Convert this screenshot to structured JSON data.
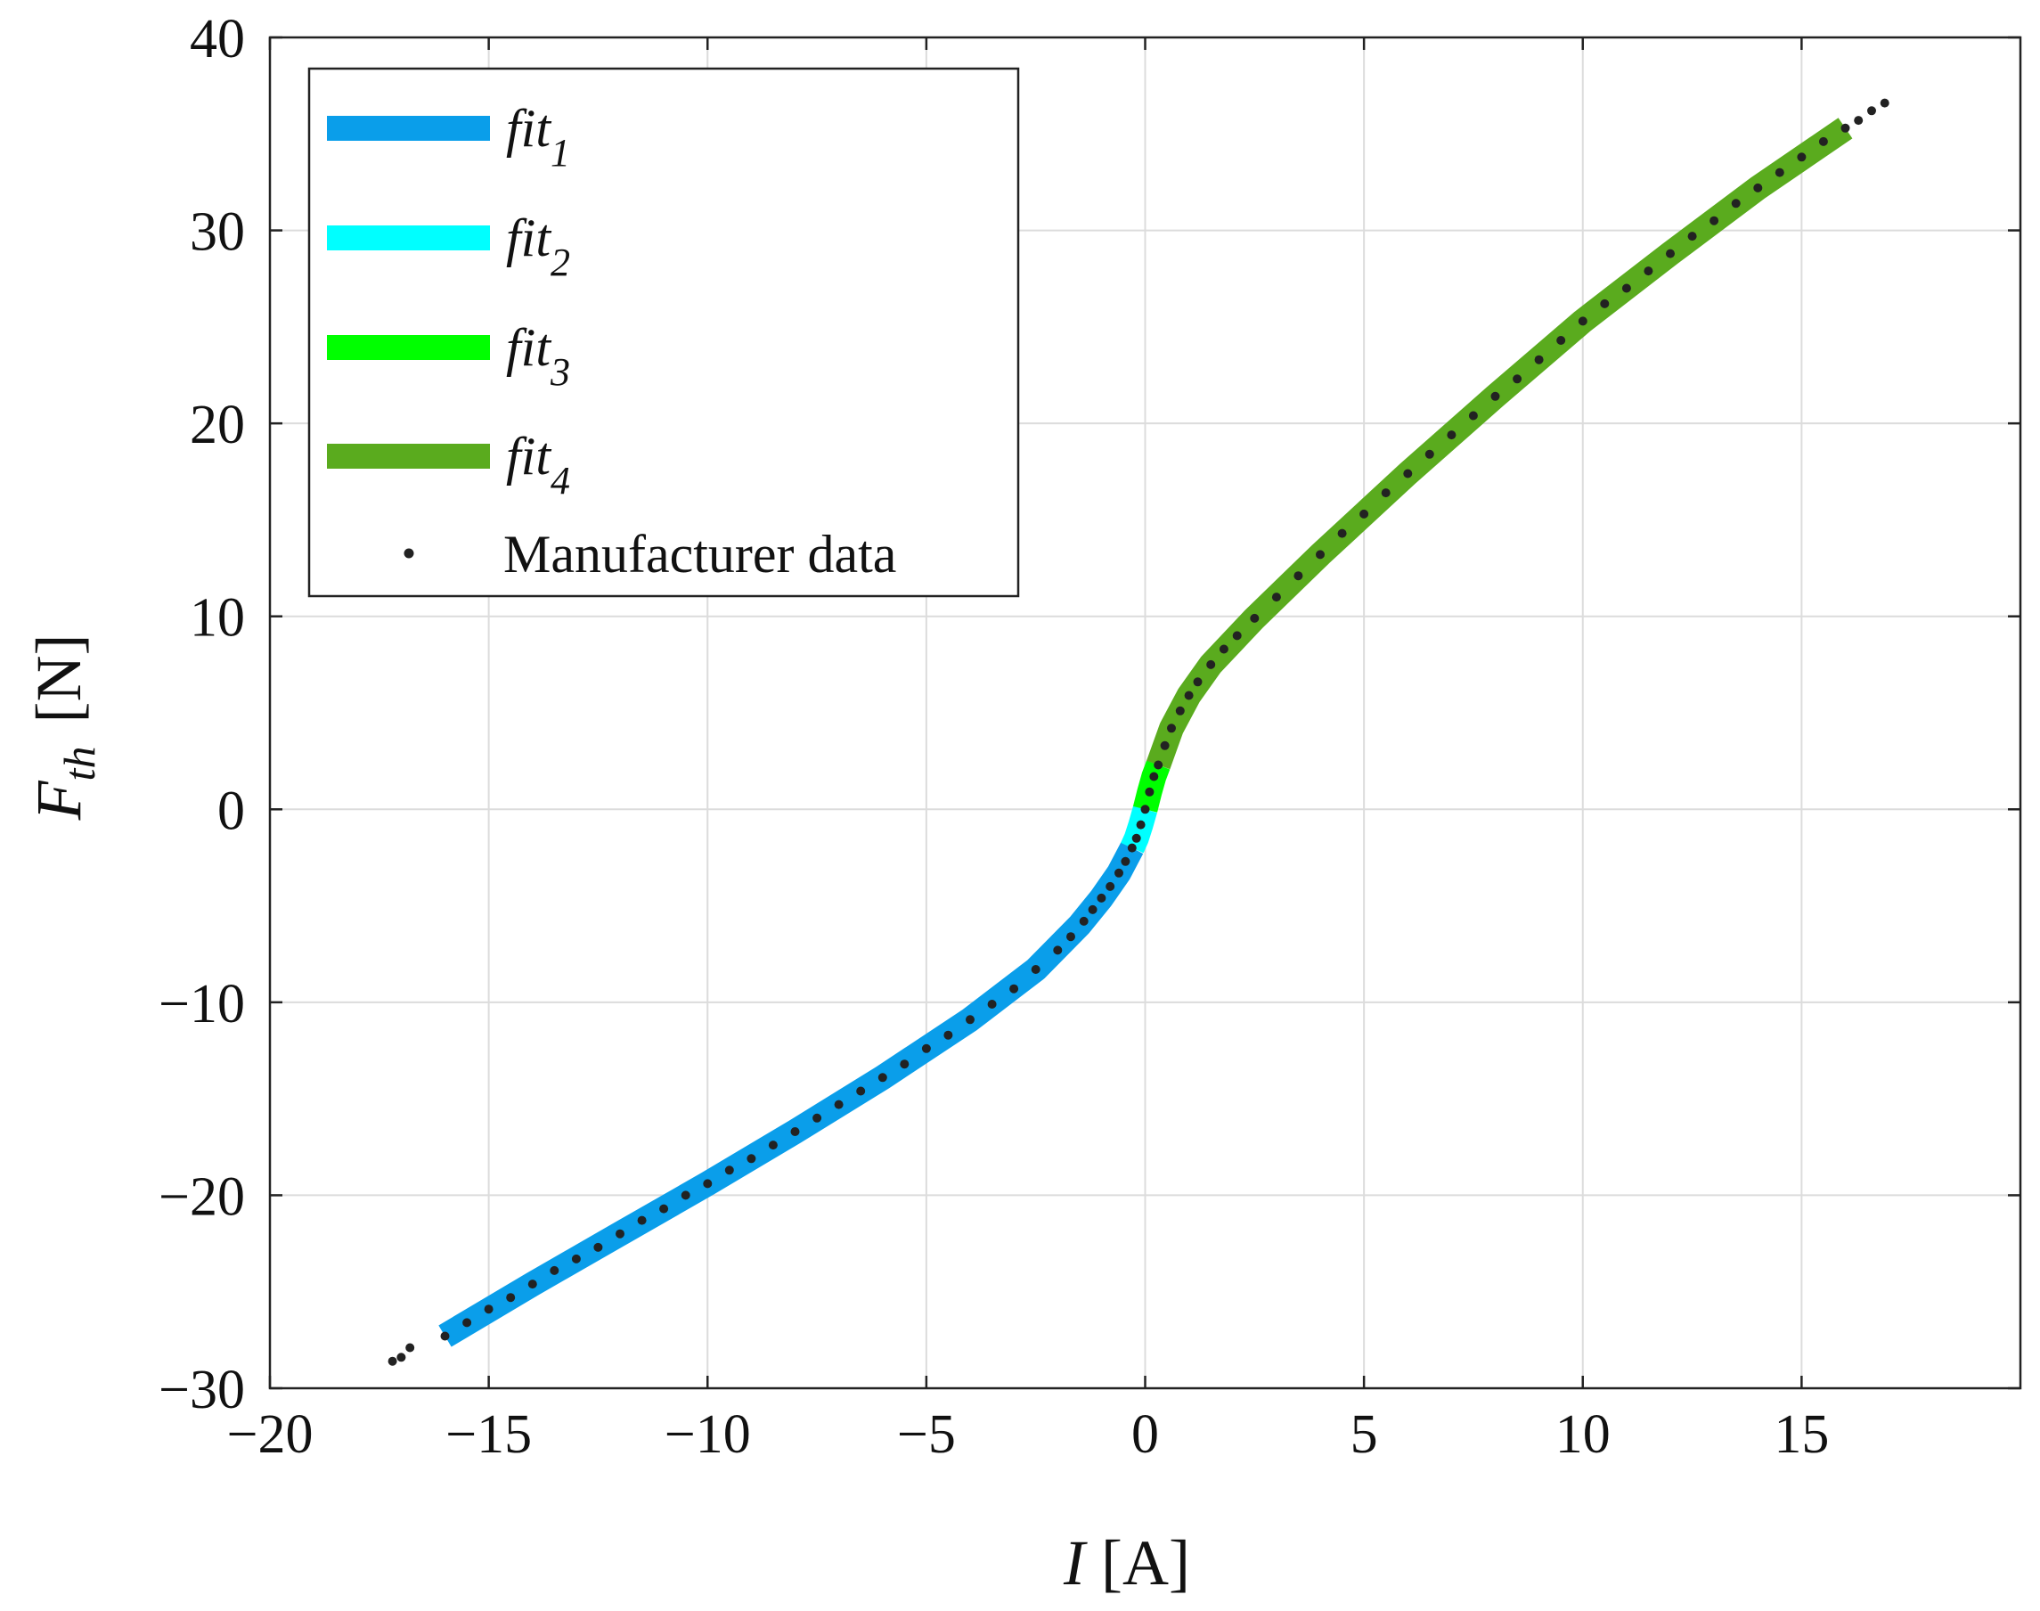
{
  "chart_data": {
    "type": "line",
    "title": "",
    "xlabel": {
      "symbol": "I",
      "unit": "[A]"
    },
    "ylabel": {
      "symbol": "F",
      "subscript": "th",
      "unit": "[N]"
    },
    "xlim": [
      -20,
      20
    ],
    "ylim": [
      -30,
      40
    ],
    "xticks": [
      -20,
      -15,
      -10,
      -5,
      0,
      5,
      10,
      15
    ],
    "yticks": [
      -30,
      -20,
      -10,
      0,
      10,
      20,
      30,
      40
    ],
    "xtick_labels": [
      "−20",
      "−15",
      "−10",
      "−5",
      "0",
      "5",
      "10",
      "15"
    ],
    "ytick_labels": [
      "−30",
      "−20",
      "−10",
      "0",
      "10",
      "20",
      "30",
      "40"
    ],
    "grid": true,
    "legend_position": "top-left",
    "series": [
      {
        "name": "fit",
        "subscript": "1",
        "color": "#0a9eea",
        "style": "thick-line",
        "x": [
          -16,
          -14,
          -12,
          -10,
          -8,
          -6,
          -4,
          -2.5,
          -1.5,
          -1,
          -0.6,
          -0.3
        ],
        "y": [
          -27.3,
          -24.6,
          -22.0,
          -19.4,
          -16.7,
          -13.9,
          -10.9,
          -8.3,
          -6.0,
          -4.6,
          -3.3,
          -2.0
        ]
      },
      {
        "name": "fit",
        "subscript": "2",
        "color": "#00ffff",
        "style": "thick-line",
        "x": [
          -0.3,
          -0.2,
          -0.1,
          0
        ],
        "y": [
          -2.0,
          -1.5,
          -0.8,
          0
        ]
      },
      {
        "name": "fit",
        "subscript": "3",
        "color": "#00ff00",
        "style": "thick-line",
        "x": [
          0,
          0.1,
          0.2,
          0.3
        ],
        "y": [
          0,
          0.9,
          1.7,
          2.3
        ]
      },
      {
        "name": "fit",
        "subscript": "4",
        "color": "#5aab1e",
        "style": "thick-line",
        "x": [
          0.3,
          0.6,
          1,
          1.5,
          2.5,
          4,
          6,
          8,
          10,
          12,
          14,
          16
        ],
        "y": [
          2.3,
          4.2,
          5.9,
          7.5,
          9.9,
          13.2,
          17.4,
          21.4,
          25.3,
          28.8,
          32.2,
          35.3
        ]
      },
      {
        "name": "Manufacturer data",
        "color": "#222222",
        "style": "markers",
        "x": [
          -17.2,
          -17.0,
          -16.8,
          -16.0,
          -15.5,
          -15.0,
          -14.5,
          -14.0,
          -13.5,
          -13.0,
          -12.5,
          -12.0,
          -11.5,
          -11.0,
          -10.5,
          -10.0,
          -9.5,
          -9.0,
          -8.5,
          -8.0,
          -7.5,
          -7.0,
          -6.5,
          -6.0,
          -5.5,
          -5.0,
          -4.5,
          -4.0,
          -3.5,
          -3.0,
          -2.5,
          -2.0,
          -1.7,
          -1.4,
          -1.2,
          -1.0,
          -0.8,
          -0.6,
          -0.45,
          -0.3,
          -0.2,
          -0.1,
          0.0,
          0.1,
          0.2,
          0.3,
          0.45,
          0.6,
          0.8,
          1.0,
          1.2,
          1.5,
          1.8,
          2.1,
          2.5,
          3.0,
          3.5,
          4.0,
          4.5,
          5.0,
          5.5,
          6.0,
          6.5,
          7.0,
          7.5,
          8.0,
          8.5,
          9.0,
          9.5,
          10.0,
          10.5,
          11.0,
          11.5,
          12.0,
          12.5,
          13.0,
          13.5,
          14.0,
          14.5,
          15.0,
          15.5,
          16.0,
          16.3,
          16.6,
          16.9
        ],
        "y": [
          -28.6,
          -28.4,
          -27.9,
          -27.3,
          -26.6,
          -25.9,
          -25.3,
          -24.6,
          -23.9,
          -23.3,
          -22.7,
          -22.0,
          -21.3,
          -20.7,
          -20.0,
          -19.4,
          -18.7,
          -18.1,
          -17.4,
          -16.7,
          -16.0,
          -15.3,
          -14.6,
          -13.9,
          -13.2,
          -12.4,
          -11.7,
          -10.9,
          -10.1,
          -9.3,
          -8.3,
          -7.3,
          -6.6,
          -5.8,
          -5.2,
          -4.6,
          -4.0,
          -3.3,
          -2.7,
          -2.0,
          -1.5,
          -0.8,
          0.0,
          0.9,
          1.7,
          2.3,
          3.3,
          4.2,
          5.1,
          5.9,
          6.6,
          7.5,
          8.3,
          9.0,
          9.9,
          11.0,
          12.1,
          13.2,
          14.3,
          15.3,
          16.4,
          17.4,
          18.4,
          19.4,
          20.4,
          21.4,
          22.3,
          23.3,
          24.3,
          25.3,
          26.2,
          27.0,
          27.9,
          28.8,
          29.7,
          30.5,
          31.4,
          32.2,
          33.0,
          33.8,
          34.6,
          35.3,
          35.7,
          36.2,
          36.6
        ]
      }
    ]
  }
}
